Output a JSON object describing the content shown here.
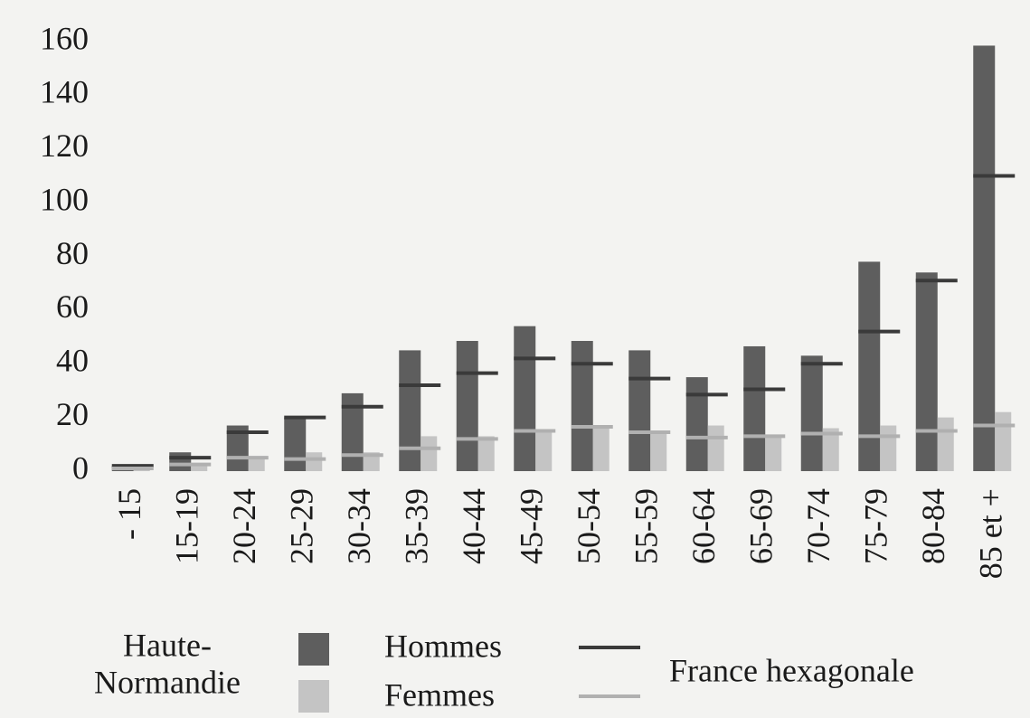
{
  "chart_data": {
    "type": "bar",
    "categories": [
      "- 15",
      "15-19",
      "20-24",
      "25-29",
      "30-34",
      "35-39",
      "40-44",
      "45-49",
      "50-54",
      "55-59",
      "60-64",
      "65-69",
      "70-74",
      "75-79",
      "80-84",
      "85 et +"
    ],
    "series": [
      {
        "name": "Hommes",
        "color": "#5e5e5e",
        "values": [
          2,
          7,
          17,
          20,
          29,
          45,
          48.5,
          54,
          48.5,
          45,
          35,
          46.5,
          43,
          78,
          74,
          158.5
        ]
      },
      {
        "name": "Femmes",
        "color": "#c4c4c4",
        "values": [
          1,
          3,
          5,
          7,
          7,
          13,
          13,
          15,
          17,
          15,
          17,
          13,
          16,
          17,
          20,
          22
        ]
      }
    ],
    "region": [
      "Haute-",
      "Normandie"
    ],
    "reference": {
      "name": "France hexagonale",
      "series": [
        {
          "color": "#3a3a3a",
          "values": [
            2,
            5,
            14.5,
            20,
            24,
            32,
            36.5,
            42,
            40,
            34.5,
            28.5,
            30.5,
            40,
            52,
            71,
            110
          ]
        },
        {
          "color": "#b0b0b0",
          "values": [
            1,
            2.5,
            5,
            4.5,
            6,
            8.5,
            12,
            15,
            16.5,
            14.5,
            12.5,
            13,
            14,
            13,
            15,
            17
          ]
        }
      ]
    },
    "ylim": [
      0,
      160
    ],
    "yticks": [
      0,
      20,
      40,
      60,
      80,
      100,
      120,
      140,
      160
    ],
    "grid": false
  }
}
